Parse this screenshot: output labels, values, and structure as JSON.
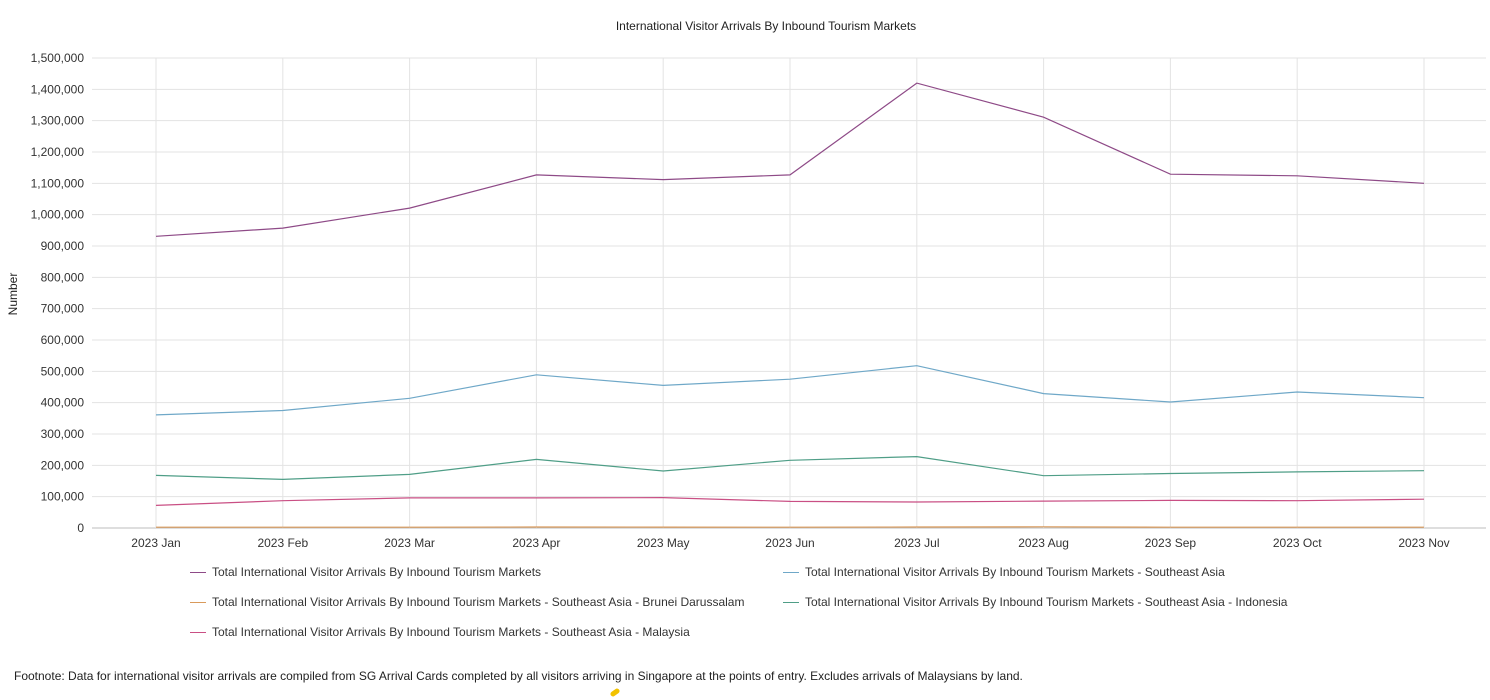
{
  "chart_data": {
    "type": "line",
    "title": "International Visitor Arrivals By Inbound Tourism Markets",
    "xlabel": "",
    "ylabel": "Number",
    "ylim": [
      0,
      1500000
    ],
    "yticks": [
      0,
      100000,
      200000,
      300000,
      400000,
      500000,
      600000,
      700000,
      800000,
      900000,
      1000000,
      1100000,
      1200000,
      1300000,
      1400000,
      1500000
    ],
    "ytick_labels": [
      "0",
      "100,000",
      "200,000",
      "300,000",
      "400,000",
      "500,000",
      "600,000",
      "700,000",
      "800,000",
      "900,000",
      "1,000,000",
      "1,100,000",
      "1,200,000",
      "1,300,000",
      "1,400,000",
      "1,500,000"
    ],
    "categories": [
      "2023 Jan",
      "2023 Feb",
      "2023 Mar",
      "2023 Apr",
      "2023 May",
      "2023 Jun",
      "2023 Jul",
      "2023 Aug",
      "2023 Sep",
      "2023 Oct",
      "2023 Nov"
    ],
    "grid": true,
    "legend_position": "bottom",
    "series": [
      {
        "name": "Total International Visitor Arrivals By Inbound Tourism Markets",
        "color": "#8e4a87",
        "values": [
          931000,
          957000,
          1021000,
          1127000,
          1112000,
          1127000,
          1420000,
          1311000,
          1129000,
          1124000,
          1100000
        ]
      },
      {
        "name": "Total International Visitor Arrivals By Inbound Tourism Markets - Southeast Asia",
        "color": "#6fa8c8",
        "values": [
          361000,
          375000,
          414000,
          489000,
          455000,
          475000,
          518000,
          429000,
          402000,
          434000,
          416000
        ]
      },
      {
        "name": "Total International Visitor Arrivals By Inbound Tourism Markets - Southeast Asia - Brunei Darussalam",
        "color": "#d99a5b",
        "values": [
          2500,
          2400,
          2600,
          3200,
          2800,
          2600,
          3100,
          3800,
          2700,
          2500,
          2600
        ]
      },
      {
        "name": "Total International Visitor Arrivals By Inbound Tourism Markets - Southeast Asia - Indonesia",
        "color": "#4f9e87",
        "values": [
          168000,
          155000,
          171000,
          219000,
          182000,
          216000,
          228000,
          167000,
          174000,
          179000,
          183000
        ]
      },
      {
        "name": "Total International Visitor Arrivals By Inbound Tourism Markets - Southeast Asia - Malaysia",
        "color": "#c94f84",
        "values": [
          72000,
          87000,
          96000,
          96000,
          97000,
          85000,
          83000,
          86000,
          88000,
          87000,
          92000
        ]
      }
    ]
  },
  "footnote": "Footnote: Data for international visitor arrivals are compiled from SG Arrival Cards completed by all visitors arriving in Singapore at the points of entry. Excludes arrivals of Malaysians by land."
}
